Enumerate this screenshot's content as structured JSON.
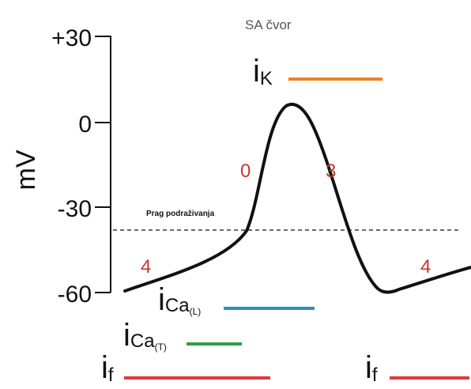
{
  "title": "SA čvor",
  "y_axis": {
    "label": "mV",
    "ticks": [
      "+30",
      "0",
      "-30",
      "-60"
    ]
  },
  "threshold_label": "Prag podraživanja",
  "phases": {
    "phase_4_left": "4",
    "phase_0": "0",
    "phase_3": "3",
    "phase_4_right": "4"
  },
  "currents": {
    "iK": {
      "main": "i",
      "sub": "K",
      "color": "#f07f22"
    },
    "iCaL": {
      "main": "i",
      "sub": "Ca",
      "subsub": "(L)",
      "color": "#2f8fc6"
    },
    "iCaT": {
      "main": "i",
      "sub": "Ca",
      "subsub": "(T)",
      "color": "#2ea043"
    },
    "if_left": {
      "main": "i",
      "sub": "f",
      "color": "#e03a3a"
    },
    "if_right": {
      "main": "i",
      "sub": "f",
      "color": "#e03a3a"
    }
  },
  "colors": {
    "curve": "#111111",
    "phase_numbers": "#c0392b",
    "axis": "#111111"
  }
}
